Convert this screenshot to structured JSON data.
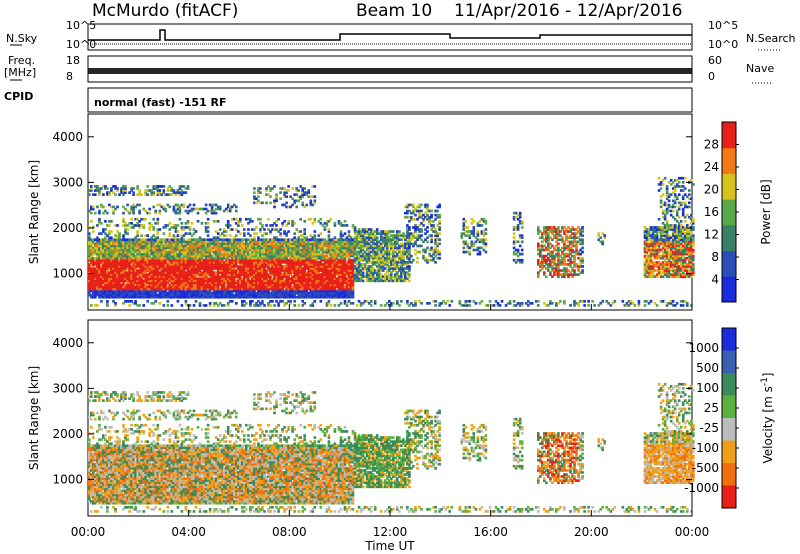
{
  "header": {
    "station": "McMurdo (fitACF)",
    "beam": "Beam 10",
    "date_range": "11/Apr/2016 - 12/Apr/2016"
  },
  "panels": {
    "nsky_label": "N.Sky",
    "nsky_ticks": [
      "10^5",
      "10^0"
    ],
    "nsearch_label": "N.Search",
    "nsearch_ticks": [
      "10^5",
      "10^0"
    ],
    "freq_label": "Freq.",
    "freq_unit": "[MHz]",
    "freq_ticks": [
      "18",
      "8"
    ],
    "nave_label": "Nave",
    "nave_ticks": [
      "60",
      "0"
    ],
    "cpid_label": "CPID",
    "cpid_value": "normal (fast) -151 RF"
  },
  "chart_data": [
    {
      "type": "heatmap",
      "name": "power",
      "ylabel": "Slant Range [km]",
      "xlabel": "Time UT",
      "xlim": [
        0,
        24
      ],
      "ylim": [
        200,
        4500
      ],
      "y_ticks": [
        "1000",
        "2000",
        "3000",
        "4000"
      ],
      "colorbar": {
        "label": "Power [dB]",
        "ticks": [
          "4",
          "8",
          "12",
          "16",
          "20",
          "24",
          "28"
        ],
        "colors": [
          "#1a2bdc",
          "#2b4fb8",
          "#3a7f6a",
          "#5aa84a",
          "#d6c21c",
          "#f07a14",
          "#e8201a"
        ],
        "range": [
          0,
          30
        ]
      },
      "regions": [
        {
          "t0": 0.0,
          "t1": 10.5,
          "r0": 600,
          "r1": 1300,
          "level": "red"
        },
        {
          "t0": 0.0,
          "t1": 10.5,
          "r0": 1300,
          "r1": 1700,
          "level": "orange"
        },
        {
          "t0": 10.5,
          "t1": 12.5,
          "r0": 800,
          "r1": 1900,
          "level": "green"
        },
        {
          "t0": 18.0,
          "t1": 19.5,
          "r0": 900,
          "r1": 2000,
          "level": "mixed"
        },
        {
          "t0": 22.0,
          "t1": 24.0,
          "r0": 900,
          "r1": 1700,
          "level": "red"
        }
      ]
    },
    {
      "type": "heatmap",
      "name": "velocity",
      "ylabel": "Slant Range [km]",
      "xlabel": "Time UT",
      "xlim": [
        0,
        24
      ],
      "ylim": [
        200,
        4500
      ],
      "y_ticks": [
        "1000",
        "2000",
        "3000",
        "4000"
      ],
      "colorbar": {
        "label": "Velocity [m s^-1]",
        "ticks": [
          "1000",
          "500",
          "100",
          "25",
          "-25",
          "-100",
          "-500",
          "-1000"
        ],
        "colors": [
          "#1a2bdc",
          "#3a5fb0",
          "#3a8a5a",
          "#5ab040",
          "#bcbcbc",
          "#f0a018",
          "#f07010",
          "#e82018"
        ],
        "range": [
          -1200,
          1200
        ]
      },
      "x_ticks": [
        "00:00",
        "04:00",
        "08:00",
        "12:00",
        "16:00",
        "20:00",
        "00:00"
      ]
    }
  ]
}
